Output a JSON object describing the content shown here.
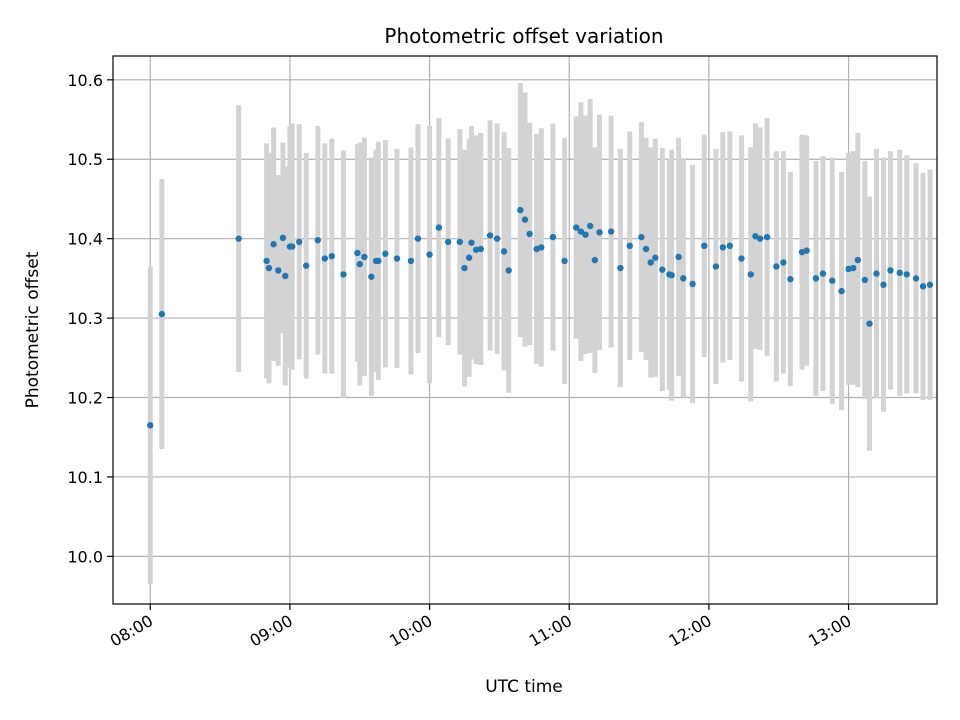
{
  "chart_data": {
    "type": "scatter",
    "title": "Photometric offset variation",
    "xlabel": "UTC time",
    "ylabel": "Photometric offset",
    "grid": true,
    "x_axis_type": "time",
    "xlim": [
      "07:44",
      "13:38"
    ],
    "ylim": [
      9.94,
      10.63
    ],
    "x_ticks": [
      "08:00",
      "09:00",
      "10:00",
      "11:00",
      "12:00",
      "13:00"
    ],
    "y_ticks": [
      10.0,
      10.1,
      10.2,
      10.3,
      10.4,
      10.5,
      10.6
    ],
    "colors": {
      "marker": "#1f77b4",
      "errorbar": "#d3d3d3",
      "grid": "#b0b0b0",
      "axes": "#000000"
    },
    "series": [
      {
        "x": [
          "08:00",
          "08:05",
          "08:38",
          "08:50",
          "08:51",
          "08:53",
          "08:55",
          "08:57",
          "08:58",
          "09:00",
          "09:01",
          "09:04",
          "09:07",
          "09:12",
          "09:15",
          "09:18",
          "09:23",
          "09:29",
          "09:30",
          "09:32",
          "09:35",
          "09:37",
          "09:38",
          "09:41",
          "09:46",
          "09:52",
          "09:55",
          "10:00",
          "10:04",
          "10:08",
          "10:13",
          "10:15",
          "10:17",
          "10:18",
          "10:20",
          "10:22",
          "10:26",
          "10:29",
          "10:32",
          "10:34",
          "10:39",
          "10:41",
          "10:43",
          "10:46",
          "10:48",
          "10:53",
          "10:58",
          "11:03",
          "11:05",
          "11:07",
          "11:09",
          "11:11",
          "11:13",
          "11:18",
          "11:22",
          "11:26",
          "11:31",
          "11:33",
          "11:35",
          "11:37",
          "11:40",
          "11:43",
          "11:44",
          "11:47",
          "11:49",
          "11:53",
          "11:58",
          "12:03",
          "12:06",
          "12:09",
          "12:14",
          "12:18",
          "12:20",
          "12:22",
          "12:25",
          "12:29",
          "12:32",
          "12:35",
          "12:40",
          "12:42",
          "12:46",
          "12:49",
          "12:53",
          "12:57",
          "13:00",
          "13:02",
          "13:04",
          "13:07",
          "13:09",
          "13:12",
          "13:15",
          "13:18",
          "13:22",
          "13:25",
          "13:29",
          "13:32",
          "13:35"
        ],
        "y": [
          10.165,
          10.305,
          10.4,
          10.372,
          10.363,
          10.393,
          10.36,
          10.401,
          10.353,
          10.39,
          10.39,
          10.396,
          10.366,
          10.398,
          10.375,
          10.378,
          10.355,
          10.382,
          10.368,
          10.377,
          10.352,
          10.372,
          10.372,
          10.381,
          10.375,
          10.372,
          10.4,
          10.38,
          10.414,
          10.396,
          10.396,
          10.363,
          10.376,
          10.395,
          10.386,
          10.387,
          10.404,
          10.4,
          10.384,
          10.36,
          10.436,
          10.424,
          10.406,
          10.387,
          10.389,
          10.402,
          10.372,
          10.414,
          10.409,
          10.405,
          10.416,
          10.373,
          10.408,
          10.409,
          10.363,
          10.391,
          10.402,
          10.387,
          10.37,
          10.376,
          10.361,
          10.355,
          10.354,
          10.377,
          10.35,
          10.343,
          10.391,
          10.365,
          10.389,
          10.391,
          10.375,
          10.355,
          10.403,
          10.4,
          10.402,
          10.365,
          10.37,
          10.349,
          10.383,
          10.385,
          10.35,
          10.356,
          10.347,
          10.334,
          10.362,
          10.363,
          10.373,
          10.348,
          10.293,
          10.356,
          10.342,
          10.36,
          10.357,
          10.355,
          10.35,
          10.34,
          10.342
        ],
        "err": [
          0.2,
          0.17,
          0.168,
          0.148,
          0.145,
          0.147,
          0.12,
          0.12,
          0.138,
          0.152,
          0.155,
          0.148,
          0.142,
          0.144,
          0.145,
          0.148,
          0.156,
          0.137,
          0.153,
          0.15,
          0.15,
          0.14,
          0.15,
          0.143,
          0.138,
          0.143,
          0.144,
          0.162,
          0.138,
          0.13,
          0.142,
          0.149,
          0.15,
          0.147,
          0.144,
          0.146,
          0.145,
          0.145,
          0.15,
          0.154,
          0.16,
          0.16,
          0.14,
          0.145,
          0.15,
          0.143,
          0.155,
          0.14,
          0.163,
          0.15,
          0.16,
          0.142,
          0.148,
          0.146,
          0.15,
          0.144,
          0.145,
          0.14,
          0.145,
          0.15,
          0.153,
          0.145,
          0.158,
          0.15,
          0.15,
          0.15,
          0.14,
          0.148,
          0.145,
          0.144,
          0.155,
          0.16,
          0.142,
          0.14,
          0.15,
          0.145,
          0.14,
          0.135,
          0.148,
          0.145,
          0.148,
          0.148,
          0.155,
          0.15,
          0.146,
          0.147,
          0.16,
          0.15,
          0.16,
          0.157,
          0.16,
          0.15,
          0.155,
          0.15,
          0.145,
          0.143,
          0.145
        ]
      }
    ]
  }
}
